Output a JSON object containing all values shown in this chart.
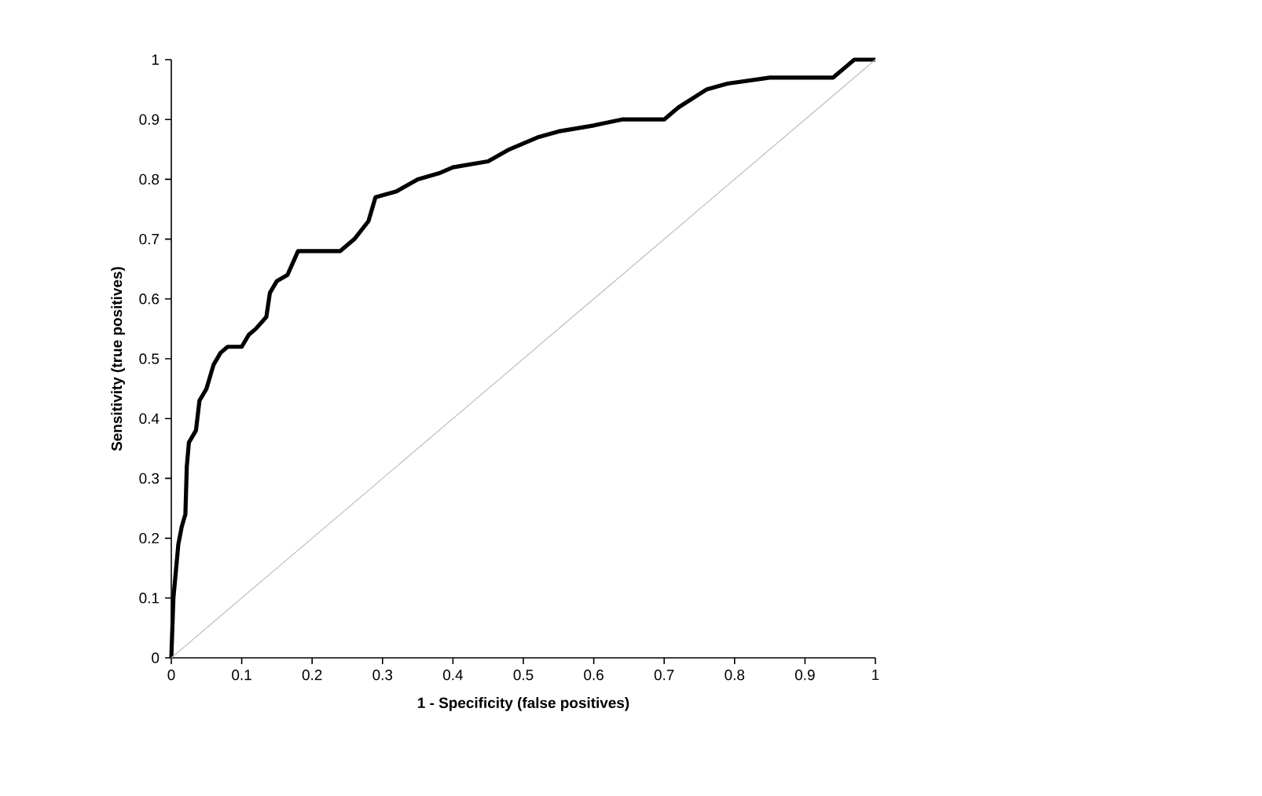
{
  "chart_data": {
    "type": "line",
    "xlabel": "1 - Specificity (false positives)",
    "ylabel": "Sensitivity (true positives)",
    "xlim": [
      0,
      1
    ],
    "ylim": [
      0,
      1
    ],
    "xticks": [
      0,
      0.1,
      0.2,
      0.3,
      0.4,
      0.5,
      0.6,
      0.7,
      0.8,
      0.9,
      1
    ],
    "yticks": [
      0,
      0.1,
      0.2,
      0.3,
      0.4,
      0.5,
      0.6,
      0.7,
      0.8,
      0.9,
      1
    ],
    "marker": "none",
    "line_style": "solid",
    "series": [
      {
        "color": "#000000",
        "x": [
          0,
          0.003,
          0.01,
          0.015,
          0.02,
          0.022,
          0.025,
          0.035,
          0.04,
          0.05,
          0.06,
          0.07,
          0.08,
          0.1,
          0.11,
          0.12,
          0.135,
          0.14,
          0.15,
          0.165,
          0.18,
          0.24,
          0.26,
          0.28,
          0.29,
          0.32,
          0.35,
          0.38,
          0.4,
          0.45,
          0.48,
          0.52,
          0.55,
          0.6,
          0.64,
          0.7,
          0.72,
          0.76,
          0.79,
          0.85,
          0.94,
          0.96,
          0.97,
          1
        ],
        "values": [
          0,
          0.1,
          0.19,
          0.22,
          0.24,
          0.32,
          0.36,
          0.38,
          0.43,
          0.45,
          0.49,
          0.51,
          0.52,
          0.52,
          0.54,
          0.55,
          0.57,
          0.61,
          0.63,
          0.64,
          0.68,
          0.68,
          0.7,
          0.73,
          0.77,
          0.78,
          0.8,
          0.81,
          0.82,
          0.83,
          0.85,
          0.87,
          0.88,
          0.89,
          0.9,
          0.9,
          0.92,
          0.95,
          0.96,
          0.97,
          0.97,
          0.99,
          1,
          1
        ]
      },
      {
        "color": "#c0c0c0",
        "x": [
          0,
          1
        ],
        "values": [
          0,
          1
        ]
      }
    ]
  }
}
